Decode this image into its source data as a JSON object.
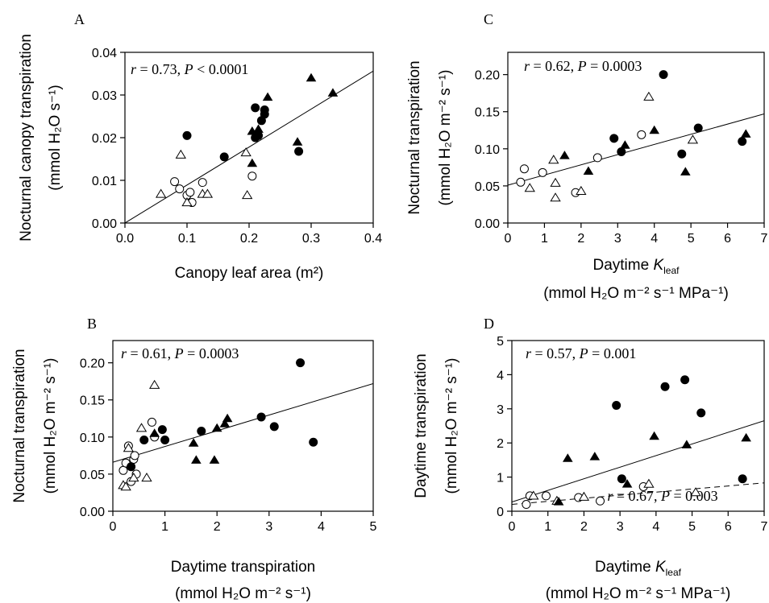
{
  "chart_data": [
    {
      "panel": "A",
      "type": "scatter",
      "ylabel_line1": "Nocturnal canopy transpiration",
      "ylabel_line2": "(mmol H₂O s⁻¹)",
      "xlabel_line1": "Canopy leaf area (m²)",
      "xlabel_line2": "",
      "xlim": [
        0,
        0.4
      ],
      "ylim": [
        0,
        0.04
      ],
      "xticks": [
        "0.0",
        "0.1",
        "0.2",
        "0.3",
        "0.4"
      ],
      "yticks": [
        "0.00",
        "0.01",
        "0.02",
        "0.03",
        "0.04"
      ],
      "stat": "r = 0.73, P < 0.0001",
      "fits": [
        {
          "style": "solid",
          "x": [
            0.0,
            0.4
          ],
          "y": [
            0.0,
            0.0356
          ]
        }
      ],
      "points": {
        "filled_circle": [
          [
            0.1,
            0.0205
          ],
          [
            0.16,
            0.0155
          ],
          [
            0.21,
            0.027
          ],
          [
            0.21,
            0.02
          ],
          [
            0.215,
            0.0205
          ],
          [
            0.22,
            0.024
          ],
          [
            0.225,
            0.0265
          ],
          [
            0.225,
            0.0255
          ],
          [
            0.28,
            0.0168
          ]
        ],
        "open_circle": [
          [
            0.08,
            0.0097
          ],
          [
            0.088,
            0.008
          ],
          [
            0.1,
            0.0065
          ],
          [
            0.105,
            0.0072
          ],
          [
            0.108,
            0.0048
          ],
          [
            0.125,
            0.0095
          ],
          [
            0.205,
            0.011
          ]
        ],
        "filled_triangle": [
          [
            0.205,
            0.0215
          ],
          [
            0.205,
            0.014
          ],
          [
            0.215,
            0.022
          ],
          [
            0.23,
            0.0295
          ],
          [
            0.278,
            0.019
          ],
          [
            0.3,
            0.034
          ],
          [
            0.335,
            0.0305
          ]
        ],
        "open_triangle": [
          [
            0.058,
            0.0068
          ],
          [
            0.09,
            0.016
          ],
          [
            0.1,
            0.0048
          ],
          [
            0.125,
            0.0068
          ],
          [
            0.133,
            0.0068
          ],
          [
            0.195,
            0.0165
          ],
          [
            0.197,
            0.0065
          ]
        ]
      }
    },
    {
      "panel": "B",
      "type": "scatter",
      "ylabel_line1": "Nocturnal transpiration",
      "ylabel_line2": "(mmol H₂O m⁻² s⁻¹)",
      "xlabel_line1": "Daytime transpiration",
      "xlabel_line2": "(mmol H₂O m⁻² s⁻¹)",
      "xlim": [
        0,
        5
      ],
      "ylim": [
        0,
        0.23
      ],
      "xticks": [
        "0",
        "1",
        "2",
        "3",
        "4",
        "5"
      ],
      "yticks": [
        "0.00",
        "0.05",
        "0.10",
        "0.15",
        "0.20"
      ],
      "stat": "r = 0.61, P = 0.0003",
      "fits": [
        {
          "style": "solid",
          "x": [
            0,
            5
          ],
          "y": [
            0.066,
            0.172
          ]
        }
      ],
      "points": {
        "filled_circle": [
          [
            0.35,
            0.06
          ],
          [
            0.6,
            0.096
          ],
          [
            0.95,
            0.11
          ],
          [
            1.0,
            0.096
          ],
          [
            1.7,
            0.108
          ],
          [
            2.85,
            0.127
          ],
          [
            3.1,
            0.114
          ],
          [
            3.6,
            0.2
          ],
          [
            3.85,
            0.093
          ]
        ],
        "open_circle": [
          [
            0.2,
            0.055
          ],
          [
            0.25,
            0.065
          ],
          [
            0.3,
            0.088
          ],
          [
            0.35,
            0.04
          ],
          [
            0.4,
            0.07
          ],
          [
            0.42,
            0.075
          ],
          [
            0.45,
            0.05
          ],
          [
            0.75,
            0.12
          ],
          [
            0.8,
            0.1
          ]
        ],
        "filled_triangle": [
          [
            0.8,
            0.105
          ],
          [
            1.55,
            0.092
          ],
          [
            1.6,
            0.069
          ],
          [
            1.95,
            0.069
          ],
          [
            2.0,
            0.112
          ],
          [
            2.2,
            0.125
          ],
          [
            2.15,
            0.118
          ]
        ],
        "open_triangle": [
          [
            0.2,
            0.035
          ],
          [
            0.25,
            0.033
          ],
          [
            0.3,
            0.085
          ],
          [
            0.4,
            0.045
          ],
          [
            0.55,
            0.112
          ],
          [
            0.65,
            0.045
          ],
          [
            0.8,
            0.17
          ]
        ]
      }
    },
    {
      "panel": "C",
      "type": "scatter",
      "ylabel_line1": "Nocturnal transpiration",
      "ylabel_line2": "(mmol H₂O m⁻² s⁻¹)",
      "xlabel_line1": "Daytime K_leaf",
      "xlabel_line2": "(mmol H₂O m⁻² s⁻¹ MPa⁻¹)",
      "xlim": [
        0,
        7
      ],
      "ylim": [
        0,
        0.23
      ],
      "xticks": [
        "0",
        "1",
        "2",
        "3",
        "4",
        "5",
        "6",
        "7"
      ],
      "yticks": [
        "0.00",
        "0.05",
        "0.10",
        "0.15",
        "0.20"
      ],
      "stat": "r = 0.62, P = 0.0003",
      "fits": [
        {
          "style": "solid",
          "x": [
            0,
            7
          ],
          "y": [
            0.051,
            0.147
          ]
        }
      ],
      "points": {
        "filled_circle": [
          [
            2.9,
            0.114
          ],
          [
            3.1,
            0.096
          ],
          [
            4.25,
            0.2
          ],
          [
            4.75,
            0.093
          ],
          [
            5.2,
            0.128
          ],
          [
            6.4,
            0.11
          ]
        ],
        "open_circle": [
          [
            0.35,
            0.055
          ],
          [
            0.45,
            0.073
          ],
          [
            0.95,
            0.068
          ],
          [
            1.85,
            0.041
          ],
          [
            2.45,
            0.088
          ],
          [
            3.65,
            0.119
          ]
        ],
        "filled_triangle": [
          [
            1.55,
            0.091
          ],
          [
            2.2,
            0.07
          ],
          [
            3.2,
            0.105
          ],
          [
            4.0,
            0.125
          ],
          [
            4.85,
            0.069
          ],
          [
            6.5,
            0.12
          ]
        ],
        "open_triangle": [
          [
            0.6,
            0.047
          ],
          [
            1.25,
            0.085
          ],
          [
            1.3,
            0.054
          ],
          [
            1.3,
            0.034
          ],
          [
            2.0,
            0.043
          ],
          [
            3.85,
            0.17
          ],
          [
            5.05,
            0.112
          ]
        ]
      }
    },
    {
      "panel": "D",
      "type": "scatter",
      "ylabel_line1": "Daytime transpiration",
      "ylabel_line2": "(mmol H₂O m⁻² s⁻¹)",
      "xlabel_line1": "Daytime K_leaf",
      "xlabel_line2": "(mmol H₂O m⁻² s⁻¹ MPa⁻¹)",
      "xlim": [
        0,
        7
      ],
      "ylim": [
        0,
        5
      ],
      "xticks": [
        "0",
        "1",
        "2",
        "3",
        "4",
        "5",
        "6",
        "7"
      ],
      "yticks": [
        "0",
        "1",
        "2",
        "3",
        "4",
        "5"
      ],
      "stat": "r = 0.57, P = 0.001",
      "stat2": "r = 0.67, P = 0.003",
      "fits": [
        {
          "style": "solid",
          "x": [
            0,
            7
          ],
          "y": [
            0.27,
            2.65
          ]
        },
        {
          "style": "dashed",
          "x": [
            0,
            7
          ],
          "y": [
            0.2,
            0.83
          ]
        }
      ],
      "points": {
        "filled_circle": [
          [
            2.9,
            3.1
          ],
          [
            3.05,
            0.95
          ],
          [
            4.25,
            3.65
          ],
          [
            4.8,
            3.85
          ],
          [
            5.25,
            2.88
          ],
          [
            6.4,
            0.95
          ]
        ],
        "open_circle": [
          [
            0.4,
            0.2
          ],
          [
            0.5,
            0.45
          ],
          [
            0.95,
            0.45
          ],
          [
            1.85,
            0.4
          ],
          [
            2.45,
            0.3
          ],
          [
            3.65,
            0.72
          ]
        ],
        "filled_triangle": [
          [
            1.55,
            1.55
          ],
          [
            1.3,
            0.28
          ],
          [
            2.3,
            1.6
          ],
          [
            3.2,
            0.8
          ],
          [
            3.95,
            2.2
          ],
          [
            4.85,
            1.95
          ],
          [
            6.5,
            2.15
          ]
        ],
        "open_triangle": [
          [
            0.6,
            0.45
          ],
          [
            1.25,
            0.3
          ],
          [
            2.0,
            0.42
          ],
          [
            3.8,
            0.8
          ],
          [
            5.1,
            0.55
          ]
        ]
      }
    }
  ]
}
